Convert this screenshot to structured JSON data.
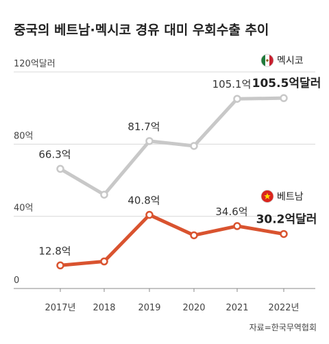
{
  "chart_data": {
    "type": "line",
    "title": "중국의 베트남·멕시코 경유 대미 우회수출 추이",
    "categories": [
      "2017년",
      "2018",
      "2019",
      "2020",
      "2021",
      "2022년"
    ],
    "series": [
      {
        "name": "멕시코",
        "color": "#c8c8c8",
        "values": [
          66.3,
          52,
          81.7,
          79,
          105.1,
          105.5
        ],
        "value_labels": [
          "66.3억",
          null,
          "81.7억",
          null,
          "105.1억",
          "105.5억달러"
        ]
      },
      {
        "name": "베트남",
        "color": "#d9532f",
        "values": [
          12.8,
          15,
          40.8,
          29.5,
          34.6,
          30.2
        ],
        "value_labels": [
          "12.8억",
          null,
          "40.8억",
          null,
          "34.6억",
          "30.2억달러"
        ]
      }
    ],
    "ylim": [
      0,
      120
    ],
    "yticks": [
      0,
      {
        "value": 40,
        "label": "40억"
      },
      {
        "value": 80,
        "label": "80억"
      },
      {
        "value": 120,
        "label": "120억달러"
      }
    ],
    "grid": true,
    "source": "자료=한국무역협회"
  }
}
